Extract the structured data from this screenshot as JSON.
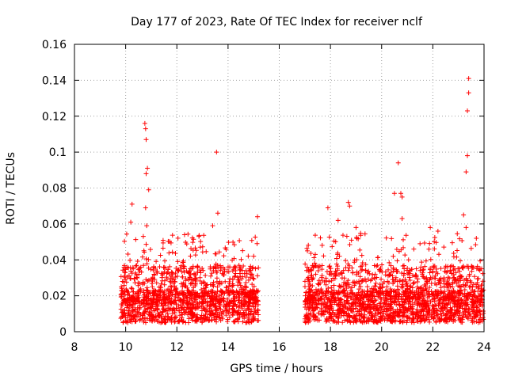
{
  "chart_data": {
    "type": "scatter",
    "title": "Day 177 of 2023, Rate Of TEC Index for receiver nclf",
    "xlabel": "GPS time / hours",
    "ylabel": "ROTI / TECUs",
    "xlim": [
      8,
      24
    ],
    "ylim": [
      0,
      0.16
    ],
    "xticks": [
      "8",
      "10",
      "12",
      "14",
      "16",
      "18",
      "20",
      "22",
      "24"
    ],
    "yticks": [
      "0",
      "0.02",
      "0.04",
      "0.06",
      "0.08",
      "0.1",
      "0.12",
      "0.14",
      "0.16"
    ],
    "grid": true,
    "marker": "+",
    "color": "#ff0000",
    "segments": [
      {
        "x_start": 9.8,
        "x_end": 15.2,
        "typical_min": 0.005,
        "typical_max": 0.045
      },
      {
        "x_start": 17.0,
        "x_end": 24.0,
        "typical_min": 0.005,
        "typical_max": 0.045
      }
    ],
    "notable_points": [
      {
        "x": 10.25,
        "y": 0.071
      },
      {
        "x": 10.2,
        "y": 0.061
      },
      {
        "x": 10.75,
        "y": 0.116
      },
      {
        "x": 10.78,
        "y": 0.113
      },
      {
        "x": 10.8,
        "y": 0.107
      },
      {
        "x": 10.85,
        "y": 0.091
      },
      {
        "x": 10.8,
        "y": 0.088
      },
      {
        "x": 10.9,
        "y": 0.079
      },
      {
        "x": 10.78,
        "y": 0.069
      },
      {
        "x": 10.82,
        "y": 0.059
      },
      {
        "x": 12.3,
        "y": 0.054
      },
      {
        "x": 13.4,
        "y": 0.059
      },
      {
        "x": 13.55,
        "y": 0.1
      },
      {
        "x": 13.6,
        "y": 0.066
      },
      {
        "x": 15.15,
        "y": 0.064
      },
      {
        "x": 17.1,
        "y": 0.045
      },
      {
        "x": 17.9,
        "y": 0.069
      },
      {
        "x": 18.7,
        "y": 0.072
      },
      {
        "x": 18.75,
        "y": 0.07
      },
      {
        "x": 18.3,
        "y": 0.062
      },
      {
        "x": 19.0,
        "y": 0.058
      },
      {
        "x": 20.5,
        "y": 0.077
      },
      {
        "x": 20.65,
        "y": 0.094
      },
      {
        "x": 20.75,
        "y": 0.077
      },
      {
        "x": 20.8,
        "y": 0.075
      },
      {
        "x": 20.8,
        "y": 0.063
      },
      {
        "x": 21.5,
        "y": 0.049
      },
      {
        "x": 21.9,
        "y": 0.058
      },
      {
        "x": 22.2,
        "y": 0.056
      },
      {
        "x": 23.2,
        "y": 0.065
      },
      {
        "x": 23.3,
        "y": 0.089
      },
      {
        "x": 23.35,
        "y": 0.098
      },
      {
        "x": 23.35,
        "y": 0.123
      },
      {
        "x": 23.4,
        "y": 0.133
      },
      {
        "x": 23.4,
        "y": 0.141
      },
      {
        "x": 23.7,
        "y": 0.052
      },
      {
        "x": 23.3,
        "y": 0.058
      }
    ]
  }
}
